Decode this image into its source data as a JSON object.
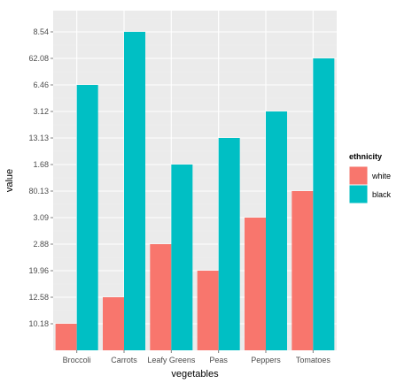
{
  "chart_data": {
    "type": "bar",
    "xlabel": "vegetables",
    "ylabel": "value",
    "categories": [
      "Broccoli",
      "Carrots",
      "Leafy Greens",
      "Peas",
      "Peppers",
      "Tomatoes"
    ],
    "y_tick_labels": [
      "10.18",
      "12.58",
      "19.96",
      "2.88",
      "3.09",
      "80.13",
      "1.68",
      "13.13",
      "3.12",
      "6.46",
      "62.08",
      "8.54"
    ],
    "y_tick_positions": [
      1,
      2,
      3,
      4,
      5,
      6,
      7,
      8,
      9,
      10,
      11,
      12
    ],
    "ylim": [
      0,
      12.8
    ],
    "grid": true,
    "legend": {
      "title": "ethnicity",
      "position": "right",
      "entries": [
        {
          "name": "white",
          "color": "#F8766D"
        },
        {
          "name": "black",
          "color": "#00BFC4"
        }
      ]
    },
    "series": [
      {
        "name": "white",
        "color": "#F8766D",
        "values": [
          1,
          2,
          4,
          3,
          5,
          6
        ]
      },
      {
        "name": "black",
        "color": "#00BFC4",
        "values": [
          10,
          12,
          7,
          8,
          9,
          11
        ]
      }
    ]
  },
  "colors": {
    "panel_background": "#EBEBEB",
    "grid_major": "#FFFFFF",
    "grid_minor": "#F2F2F2",
    "legend_key_background": "#F2F2F2"
  }
}
